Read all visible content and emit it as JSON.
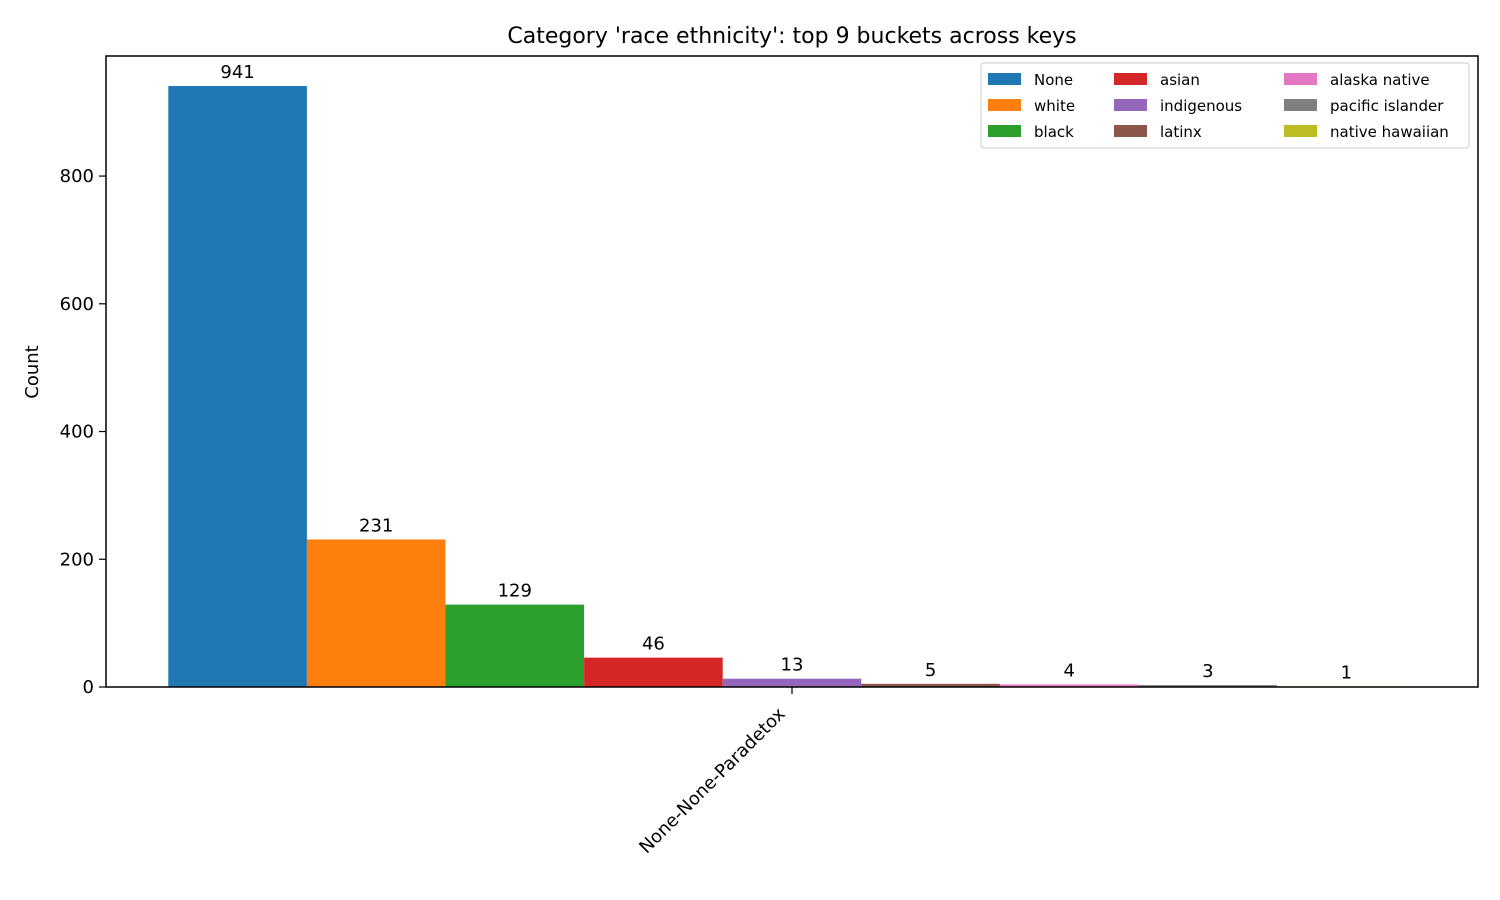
{
  "chart_data": {
    "type": "bar",
    "title": "Category 'race ethnicity': top 9 buckets across keys",
    "xlabel": "",
    "ylabel": "Count",
    "categories": [
      "None-None-Paradetox"
    ],
    "ylim": [
      0,
      988
    ],
    "yticks": [
      0,
      200,
      400,
      600,
      800
    ],
    "grid": false,
    "legend_placement": "top-right",
    "legend_columns": 3,
    "series": [
      {
        "name": "None",
        "values": [
          941
        ],
        "color": "#1f77b4"
      },
      {
        "name": "white",
        "values": [
          231
        ],
        "color": "#ff7f0e"
      },
      {
        "name": "black",
        "values": [
          129
        ],
        "color": "#2ca02c"
      },
      {
        "name": "asian",
        "values": [
          46
        ],
        "color": "#d62728"
      },
      {
        "name": "indigenous",
        "values": [
          13
        ],
        "color": "#9467bd"
      },
      {
        "name": "latinx",
        "values": [
          5
        ],
        "color": "#8c564b"
      },
      {
        "name": "alaska native",
        "values": [
          4
        ],
        "color": "#e377c2"
      },
      {
        "name": "pacific islander",
        "values": [
          3
        ],
        "color": "#7f7f7f"
      },
      {
        "name": "native hawaiian",
        "values": [
          1
        ],
        "color": "#bcbd22"
      }
    ]
  }
}
